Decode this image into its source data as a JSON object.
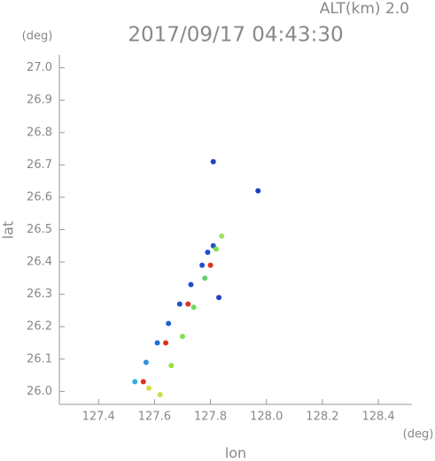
{
  "chart_data": {
    "type": "scatter",
    "title": "2017/09/17 04:43:30",
    "subtitle": "ALT(km) 2.0",
    "y_unit": "(deg)",
    "x_unit": "(deg)",
    "x_label": "lon",
    "y_label": "lat",
    "xlim": [
      127.26,
      128.52
    ],
    "ylim": [
      25.96,
      27.04
    ],
    "xticks": [
      127.4,
      127.6,
      127.8,
      {
        "value": 128,
        "label": "128.0"
      },
      128.2,
      128.4
    ],
    "yticks": [
      {
        "value": 26,
        "label": "26.0"
      },
      26.1,
      26.2,
      26.3,
      26.4,
      26.5,
      26.6,
      26.7,
      26.8,
      26.9,
      {
        "value": 27,
        "label": "27.0"
      }
    ],
    "x": [
      127.53,
      127.57,
      127.61,
      127.65,
      127.69,
      127.73,
      127.77,
      127.81,
      127.56,
      127.64,
      127.72,
      127.8,
      127.62,
      127.66,
      127.7,
      127.74,
      127.78,
      127.82,
      127.84,
      127.58,
      127.81,
      127.97,
      127.83,
      127.79
    ],
    "values": [
      26.03,
      26.09,
      26.15,
      26.21,
      26.27,
      26.33,
      26.39,
      26.45,
      26.03,
      26.15,
      26.27,
      26.39,
      25.99,
      26.08,
      26.17,
      26.26,
      26.35,
      26.44,
      26.48,
      26.01,
      26.71,
      26.62,
      26.29,
      26.43
    ],
    "colors": [
      "#30b0e0",
      "#3090e0",
      "#2070d8",
      "#2060d0",
      "#2050d0",
      "#2050d0",
      "#2050d0",
      "#2050d0",
      "#e03020",
      "#e03020",
      "#e03020",
      "#e03020",
      "#c8e040",
      "#90e040",
      "#80e050",
      "#70d860",
      "#60d070",
      "#80e050",
      "#a0e060",
      "#d8e040",
      "#2040c0",
      "#2040c0",
      "#2040c0",
      "#2050d0"
    ]
  }
}
